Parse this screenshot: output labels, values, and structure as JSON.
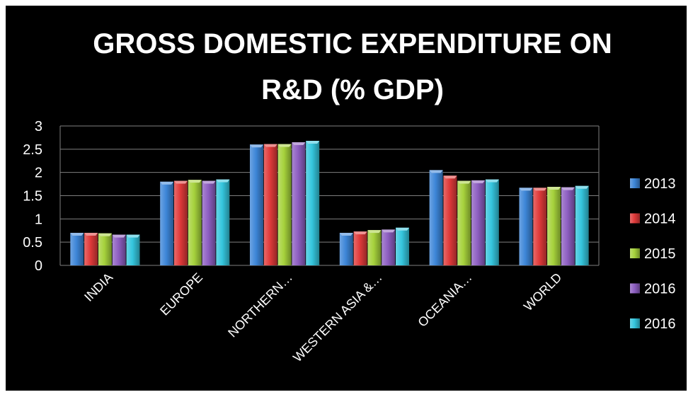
{
  "chart_data": {
    "type": "bar",
    "title": "GROSS DOMESTIC EXPENDITURE ON R&D (% GDP)",
    "title_lines": [
      "GROSS DOMESTIC EXPENDITURE ON",
      "R&D (% GDP)"
    ],
    "categories": [
      "INDIA",
      "EUROPE",
      "NORTHERN…",
      "WESTERN ASIA &…",
      "OCEANIA…",
      "WORLD"
    ],
    "series": [
      {
        "name": "2013",
        "color": "#3d86d8",
        "values": [
          0.7,
          1.8,
          2.6,
          0.7,
          2.05,
          1.67
        ]
      },
      {
        "name": "2014",
        "color": "#e03a3a",
        "values": [
          0.7,
          1.82,
          2.61,
          0.73,
          1.93,
          1.67
        ]
      },
      {
        "name": "2015",
        "color": "#a6d23c",
        "values": [
          0.69,
          1.84,
          2.61,
          0.76,
          1.82,
          1.69
        ]
      },
      {
        "name": "2016",
        "color": "#8e5fc2",
        "values": [
          0.66,
          1.82,
          2.65,
          0.77,
          1.83,
          1.68
        ]
      },
      {
        "name": "2016",
        "color": "#35c6de",
        "values": [
          0.66,
          1.85,
          2.68,
          0.81,
          1.85,
          1.71
        ]
      }
    ],
    "yticks": [
      "0",
      "0.5",
      "1",
      "1.5",
      "2",
      "2.5",
      "3"
    ],
    "ylim": [
      0,
      3
    ],
    "xlabel": "",
    "ylabel": "",
    "grid": true,
    "legend_position": "right",
    "background": "#000000",
    "gridline_color": "#7f7f7f"
  }
}
